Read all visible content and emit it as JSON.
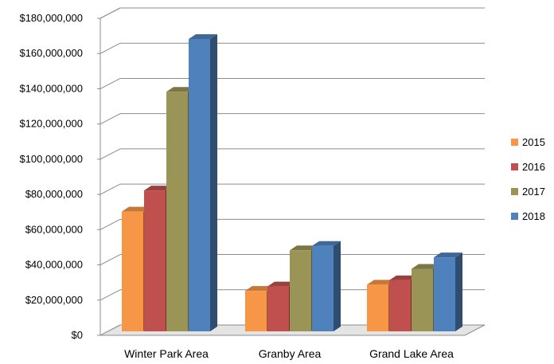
{
  "chart_data": {
    "type": "bar",
    "style": "3d-clustered-column",
    "categories": [
      "Winter Park Area",
      "Granby Area",
      "Grand Lake Area"
    ],
    "series": [
      {
        "name": "2015",
        "color": "#f79646",
        "values": [
          68000000,
          23000000,
          26500000
        ]
      },
      {
        "name": "2016",
        "color": "#c0504d",
        "values": [
          80000000,
          25500000,
          29000000
        ]
      },
      {
        "name": "2017",
        "color": "#9b9457",
        "values": [
          136000000,
          46000000,
          35500000
        ]
      },
      {
        "name": "2018",
        "color": "#4f81bd",
        "values": [
          166000000,
          48500000,
          42000000
        ]
      }
    ],
    "y_ticks": [
      "$0",
      "$20,000,000",
      "$40,000,000",
      "$60,000,000",
      "$80,000,000",
      "$100,000,000",
      "$120,000,000",
      "$140,000,000",
      "$160,000,000",
      "$180,000,000"
    ],
    "ylim": [
      0,
      180000000
    ],
    "grid": true,
    "legend": "right"
  }
}
